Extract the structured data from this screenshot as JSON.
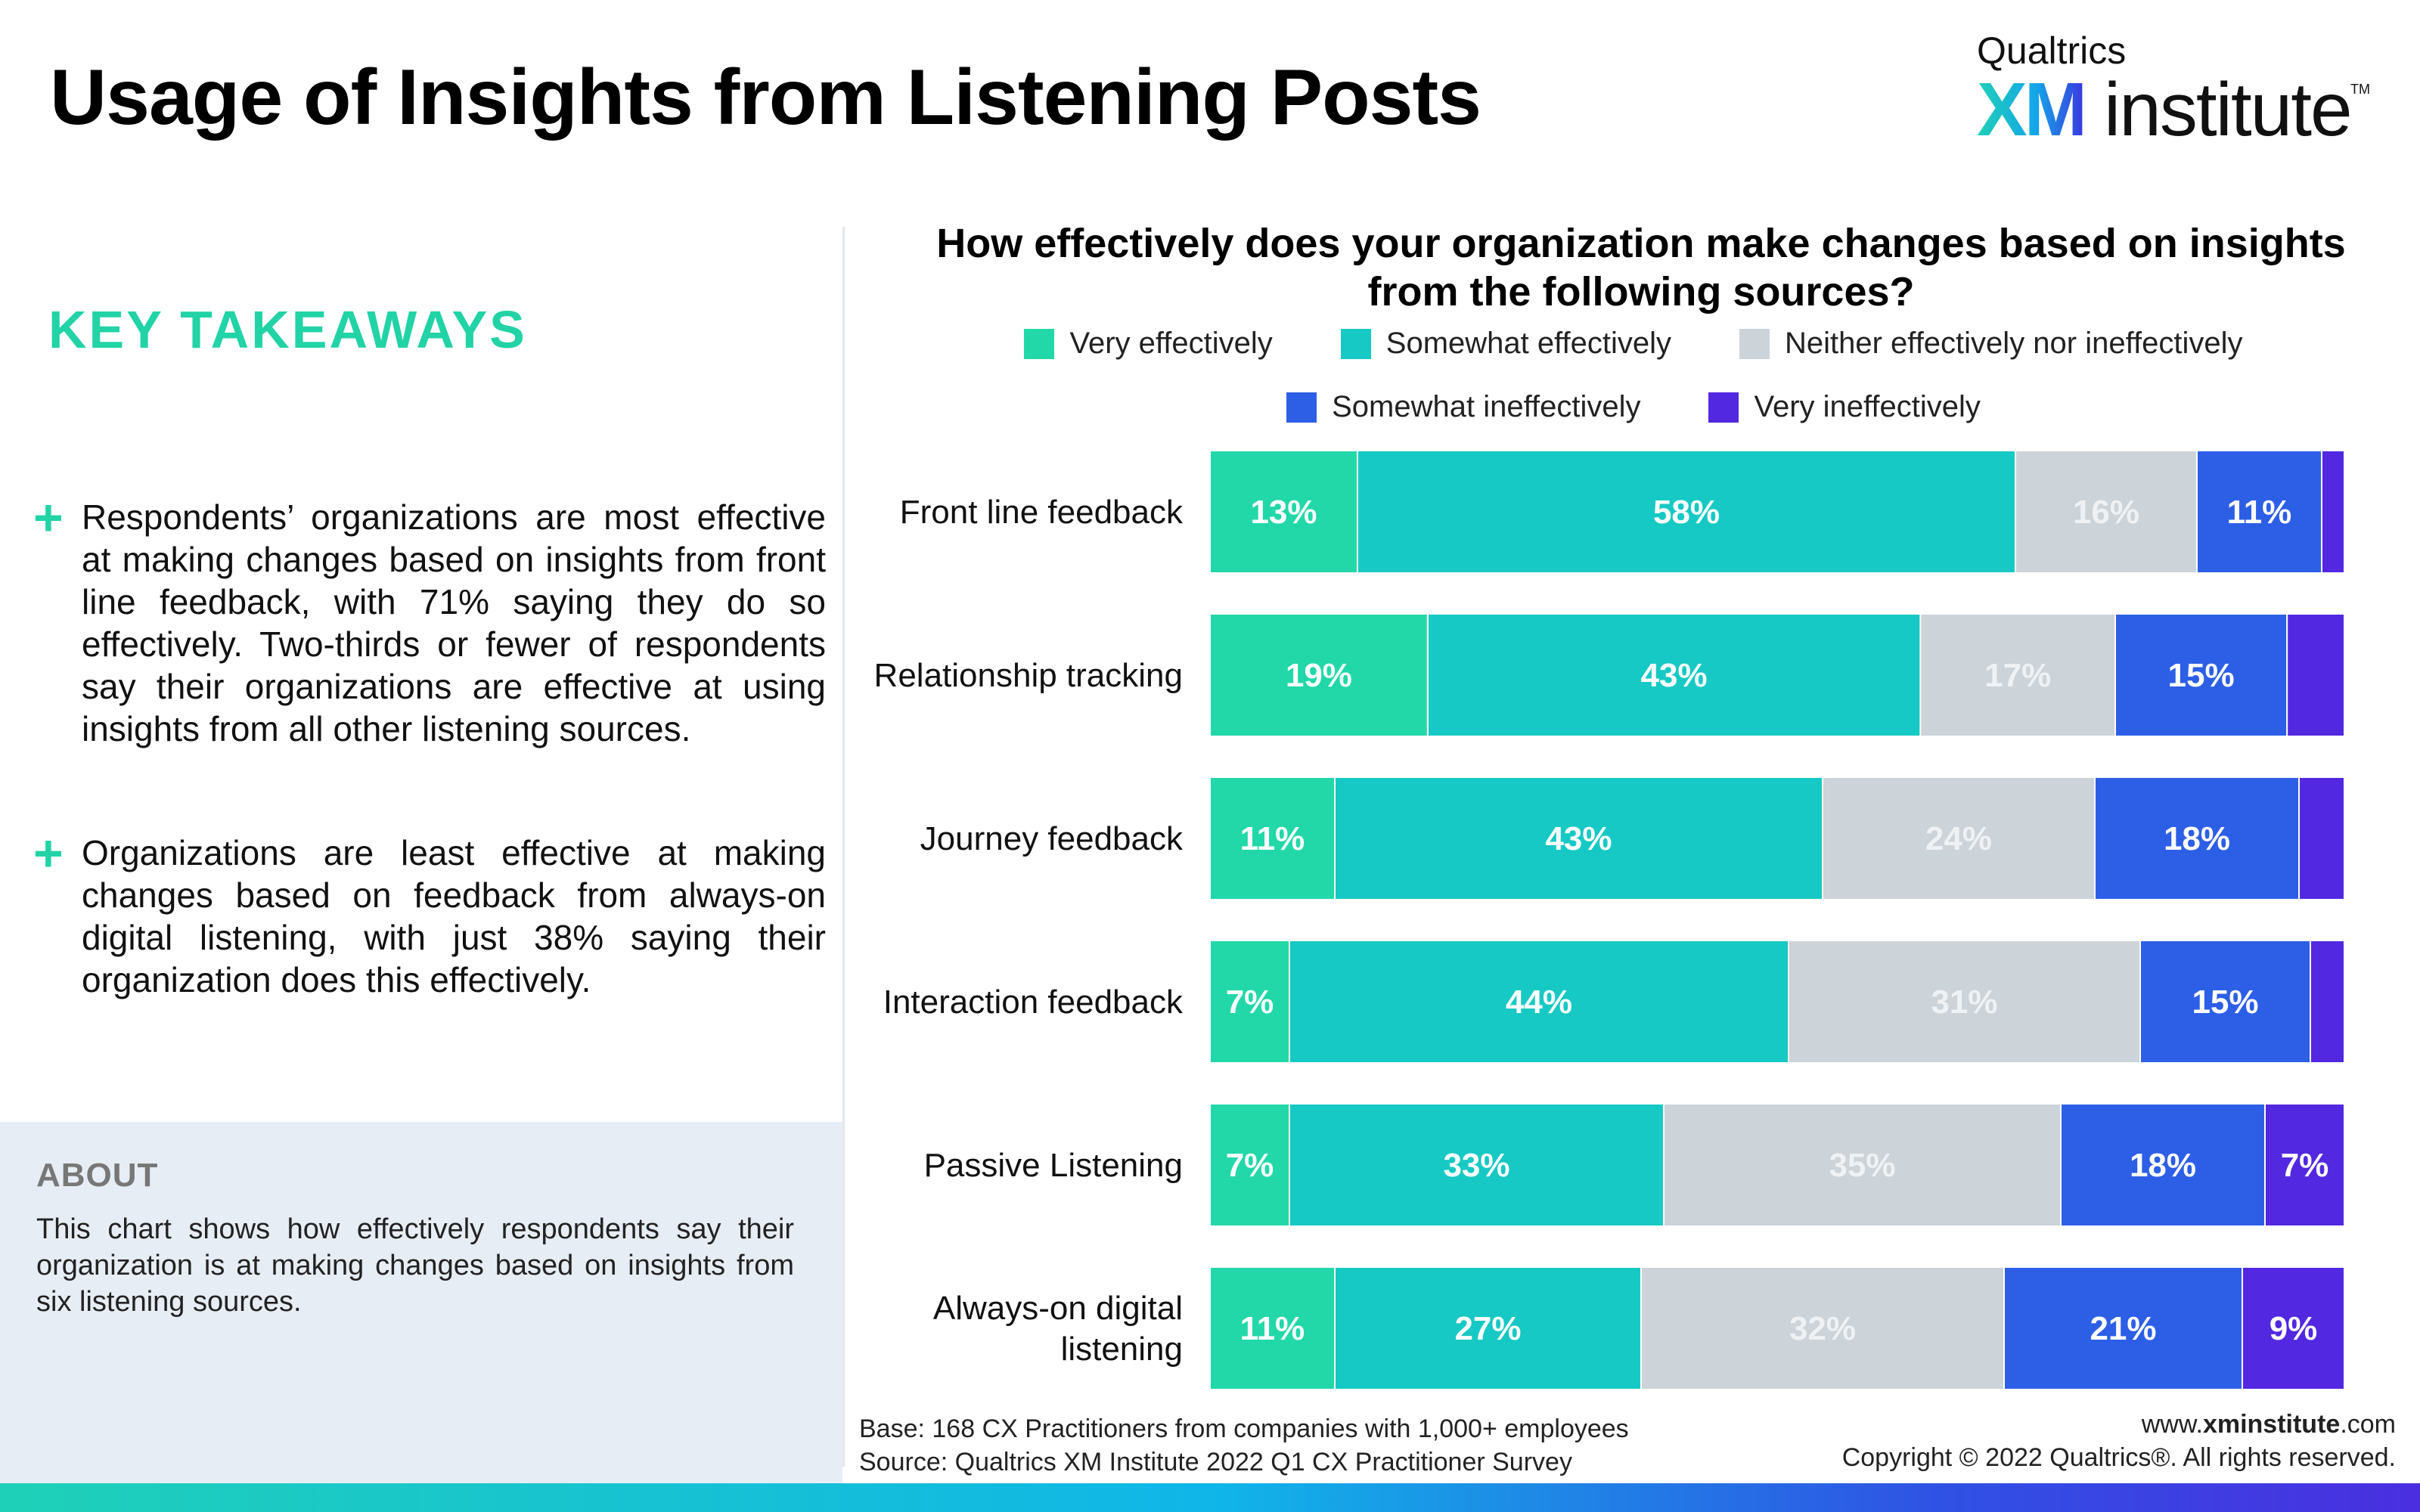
{
  "header": {
    "title": "Usage of Insights from Listening Posts",
    "logo": {
      "brand": "Qualtrics",
      "xm": "XM",
      "institute": "institute",
      "tm": "TM"
    }
  },
  "takeaways": {
    "title": "KEY TAKEAWAYS",
    "items": [
      {
        "icon": "plus-icon",
        "text": "Respondents’ organizations are most effective at making changes based on insights from front line feedback, with 71% saying they do so effectively. Two-thirds or fewer of respondents say their organizations are effective at using insights from all other listening sources."
      },
      {
        "icon": "plus-icon",
        "text": "Organizations are least effective at making changes based on feedback from always-on digital listening, with just 38% saying their organization does this effectively."
      }
    ]
  },
  "about": {
    "title": "ABOUT",
    "text": "This chart shows how effectively respondents say their organization is at making changes based on insights from six listening sources."
  },
  "colors": {
    "very_effectively": "#22d8a8",
    "somewhat_effectively": "#17c9c4",
    "neither": "#ccd3d9",
    "somewhat_ineffectively": "#2d5fe6",
    "very_ineffectively": "#5228e0",
    "accent": "#22d3a6"
  },
  "chart_data": {
    "type": "bar",
    "orientation": "horizontal",
    "stacked": true,
    "title": "How effectively does your organization make changes based on insights from the following sources?",
    "categories": [
      "Front line feedback",
      "Relationship tracking",
      "Journey feedback",
      "Interaction feedback",
      "Passive Listening",
      "Always-on digital listening"
    ],
    "series": [
      {
        "name": "Very effectively",
        "values": [
          13,
          19,
          11,
          7,
          7,
          11
        ]
      },
      {
        "name": "Somewhat effectively",
        "values": [
          58,
          43,
          43,
          44,
          33,
          27
        ]
      },
      {
        "name": "Neither effectively nor ineffectively",
        "values": [
          16,
          17,
          24,
          31,
          35,
          32
        ]
      },
      {
        "name": "Somewhat ineffectively",
        "values": [
          11,
          15,
          18,
          15,
          18,
          21
        ]
      },
      {
        "name": "Very ineffectively",
        "values": [
          2,
          5,
          4,
          3,
          7,
          9
        ]
      }
    ],
    "data_labels": [
      [
        "13%",
        "58%",
        "16%",
        "11%",
        ""
      ],
      [
        "19%",
        "43%",
        "17%",
        "15%",
        ""
      ],
      [
        "11%",
        "43%",
        "24%",
        "18%",
        ""
      ],
      [
        "7%",
        "44%",
        "31%",
        "15%",
        ""
      ],
      [
        "7%",
        "33%",
        "35%",
        "18%",
        "7%"
      ],
      [
        "11%",
        "27%",
        "32%",
        "21%",
        "9%"
      ]
    ],
    "legend_position": "top",
    "grid": false
  },
  "footer": {
    "base": "Base: 168 CX Practitioners from companies with 1,000+ employees",
    "source": "Source: Qualtrics XM Institute 2022 Q1 CX Practitioner Survey",
    "site_prefix": "www.",
    "site_bold": "xminstitute",
    "site_suffix": ".com",
    "copyright": "Copyright © 2022 Qualtrics®. All rights reserved."
  }
}
